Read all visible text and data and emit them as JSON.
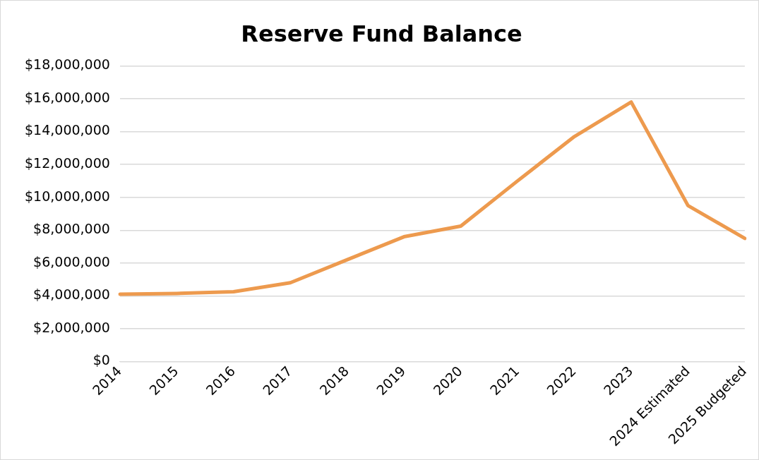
{
  "chart_data": {
    "type": "line",
    "title": "Reserve Fund Balance",
    "categories": [
      "2014",
      "2015",
      "2016",
      "2017",
      "2018",
      "2019",
      "2020",
      "2021",
      "2022",
      "2023",
      "2024 Estimated",
      "2025 Budgeted"
    ],
    "series": [
      {
        "color": "#ed9a4e",
        "values": [
          4100000,
          4150000,
          4250000,
          4800000,
          6200000,
          7600000,
          8250000,
          11000000,
          13700000,
          15800000,
          9500000,
          7500000
        ]
      }
    ],
    "ylim": [
      0,
      18000000
    ],
    "yticks": [
      {
        "value": 0,
        "label": "$0"
      },
      {
        "value": 2000000,
        "label": "$2,000,000"
      },
      {
        "value": 4000000,
        "label": "$4,000,000"
      },
      {
        "value": 6000000,
        "label": "$6,000,000"
      },
      {
        "value": 8000000,
        "label": "$8,000,000"
      },
      {
        "value": 10000000,
        "label": "$10,000,000"
      },
      {
        "value": 12000000,
        "label": "$12,000,000"
      },
      {
        "value": 14000000,
        "label": "$14,000,000"
      },
      {
        "value": 16000000,
        "label": "$16,000,000"
      },
      {
        "value": 18000000,
        "label": "$18,000,000"
      }
    ],
    "grid": "y",
    "legend": false,
    "marker": "none",
    "line_style": "solid"
  }
}
